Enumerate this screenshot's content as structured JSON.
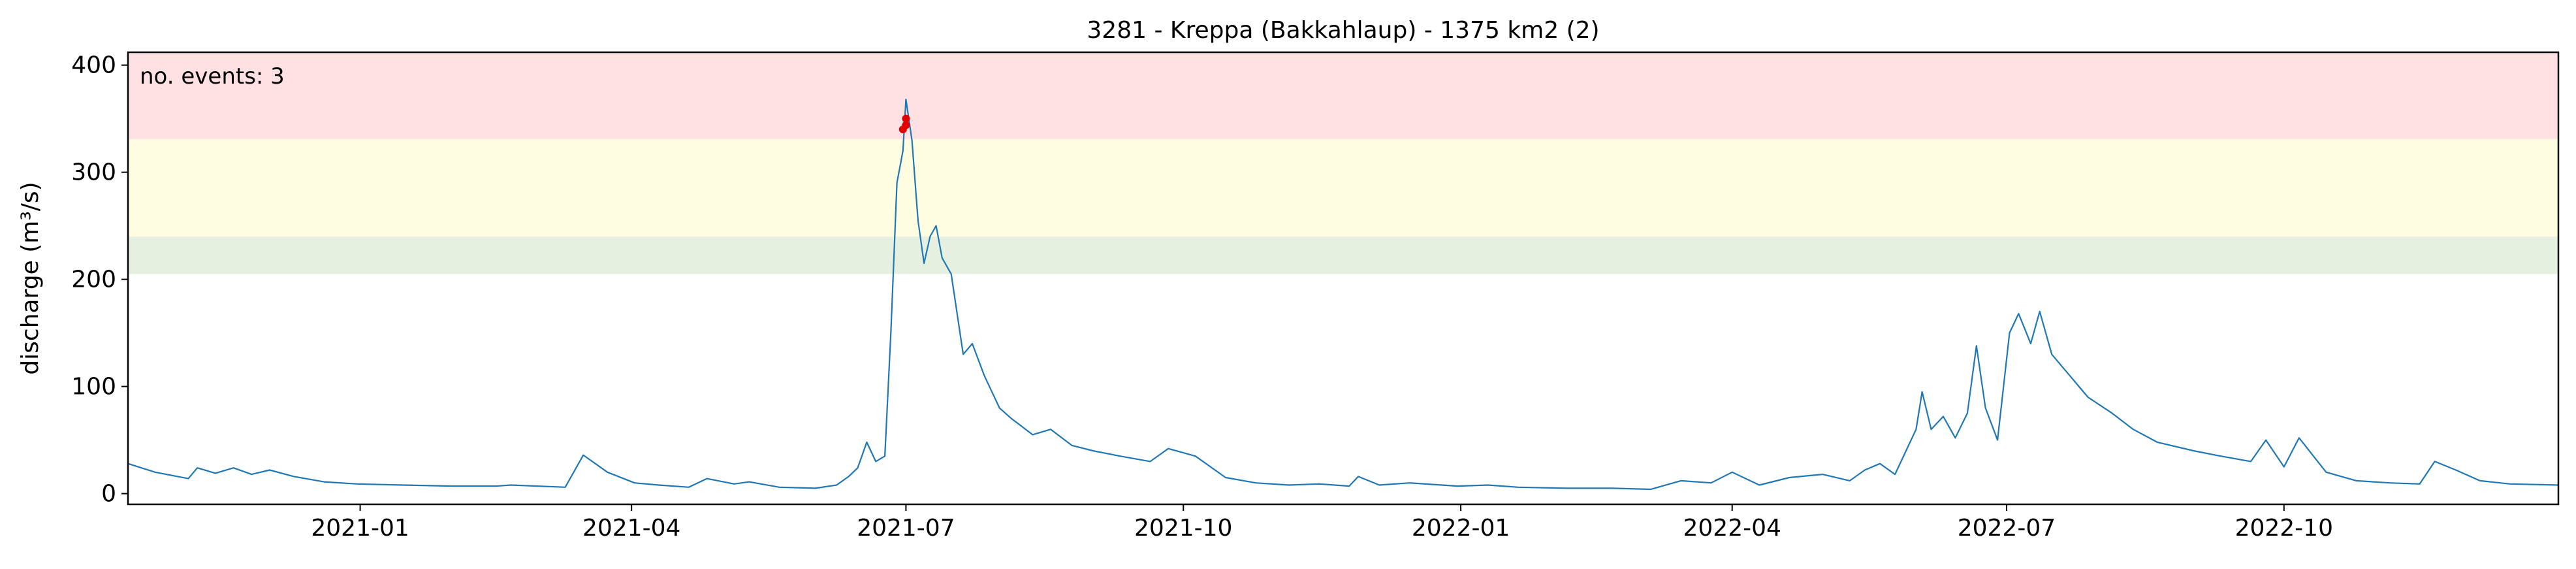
{
  "chart_data": {
    "type": "line",
    "title": "3281 - Kreppa (Bakkahlaup) - 1375 km2 (2)",
    "xlabel": "",
    "ylabel": "discharge (m³/s)",
    "xlim": [
      "2020-10-16",
      "2022-12-31"
    ],
    "ylim": [
      -10,
      412
    ],
    "x_ticks": [
      "2021-01-01",
      "2021-04-01",
      "2021-07-01",
      "2021-10-01",
      "2022-01-01",
      "2022-04-01",
      "2022-07-01",
      "2022-10-01"
    ],
    "x_tick_labels": [
      "2021-01",
      "2021-04",
      "2021-07",
      "2021-10",
      "2022-01",
      "2022-04",
      "2022-07",
      "2022-10"
    ],
    "y_ticks": [
      0,
      100,
      200,
      300,
      400
    ],
    "y_tick_labels": [
      "0",
      "100",
      "200",
      "300",
      "400"
    ],
    "grid": false,
    "threshold_bands": [
      {
        "from": 205,
        "to": 240,
        "color": "#e6f0e1"
      },
      {
        "from": 240,
        "to": 331,
        "color": "#fefde2"
      },
      {
        "from": 331,
        "to": 412,
        "color": "#ffe1e3"
      }
    ],
    "annotation": {
      "text": "no. events: 3",
      "color": "#e00000"
    },
    "line_color": "#1f77b4",
    "event_marker_color": "#e00000",
    "events": [
      {
        "x": "2021-06-30",
        "y": 340
      },
      {
        "x": "2021-07-01",
        "y": 350
      },
      {
        "x": "2021-07-01",
        "y": 344
      }
    ],
    "series": [
      {
        "points": [
          [
            "2020-10-16",
            28
          ],
          [
            "2020-10-25",
            20
          ],
          [
            "2020-11-05",
            14
          ],
          [
            "2020-11-08",
            24
          ],
          [
            "2020-11-14",
            19
          ],
          [
            "2020-11-20",
            24
          ],
          [
            "2020-11-26",
            18
          ],
          [
            "2020-12-02",
            22
          ],
          [
            "2020-12-10",
            16
          ],
          [
            "2020-12-20",
            11
          ],
          [
            "2020-12-31",
            9
          ],
          [
            "2021-01-15",
            8
          ],
          [
            "2021-02-01",
            7
          ],
          [
            "2021-02-15",
            7
          ],
          [
            "2021-02-20",
            8
          ],
          [
            "2021-03-10",
            6
          ],
          [
            "2021-03-16",
            36
          ],
          [
            "2021-03-24",
            20
          ],
          [
            "2021-04-02",
            10
          ],
          [
            "2021-04-10",
            8
          ],
          [
            "2021-04-20",
            6
          ],
          [
            "2021-04-26",
            14
          ],
          [
            "2021-05-05",
            9
          ],
          [
            "2021-05-10",
            11
          ],
          [
            "2021-05-20",
            6
          ],
          [
            "2021-06-01",
            5
          ],
          [
            "2021-06-08",
            8
          ],
          [
            "2021-06-12",
            16
          ],
          [
            "2021-06-15",
            24
          ],
          [
            "2021-06-18",
            48
          ],
          [
            "2021-06-21",
            30
          ],
          [
            "2021-06-24",
            35
          ],
          [
            "2021-06-26",
            150
          ],
          [
            "2021-06-28",
            290
          ],
          [
            "2021-06-30",
            320
          ],
          [
            "2021-07-01",
            368
          ],
          [
            "2021-07-03",
            330
          ],
          [
            "2021-07-05",
            255
          ],
          [
            "2021-07-07",
            215
          ],
          [
            "2021-07-09",
            240
          ],
          [
            "2021-07-11",
            250
          ],
          [
            "2021-07-13",
            220
          ],
          [
            "2021-07-16",
            205
          ],
          [
            "2021-07-20",
            130
          ],
          [
            "2021-07-23",
            140
          ],
          [
            "2021-07-27",
            110
          ],
          [
            "2021-08-01",
            80
          ],
          [
            "2021-08-05",
            70
          ],
          [
            "2021-08-12",
            55
          ],
          [
            "2021-08-18",
            60
          ],
          [
            "2021-08-25",
            45
          ],
          [
            "2021-09-01",
            40
          ],
          [
            "2021-09-10",
            35
          ],
          [
            "2021-09-20",
            30
          ],
          [
            "2021-09-26",
            42
          ],
          [
            "2021-10-05",
            35
          ],
          [
            "2021-10-15",
            15
          ],
          [
            "2021-10-25",
            10
          ],
          [
            "2021-11-05",
            8
          ],
          [
            "2021-11-15",
            9
          ],
          [
            "2021-11-25",
            7
          ],
          [
            "2021-11-28",
            16
          ],
          [
            "2021-12-05",
            8
          ],
          [
            "2021-12-15",
            10
          ],
          [
            "2021-12-31",
            7
          ],
          [
            "2022-01-10",
            8
          ],
          [
            "2022-01-20",
            6
          ],
          [
            "2022-02-05",
            5
          ],
          [
            "2022-02-20",
            5
          ],
          [
            "2022-03-05",
            4
          ],
          [
            "2022-03-15",
            12
          ],
          [
            "2022-03-25",
            10
          ],
          [
            "2022-04-01",
            20
          ],
          [
            "2022-04-10",
            8
          ],
          [
            "2022-04-20",
            15
          ],
          [
            "2022-05-01",
            18
          ],
          [
            "2022-05-10",
            12
          ],
          [
            "2022-05-15",
            22
          ],
          [
            "2022-05-20",
            28
          ],
          [
            "2022-05-25",
            18
          ],
          [
            "2022-06-01",
            60
          ],
          [
            "2022-06-03",
            95
          ],
          [
            "2022-06-06",
            60
          ],
          [
            "2022-06-10",
            72
          ],
          [
            "2022-06-14",
            52
          ],
          [
            "2022-06-18",
            75
          ],
          [
            "2022-06-21",
            138
          ],
          [
            "2022-06-24",
            80
          ],
          [
            "2022-06-28",
            50
          ],
          [
            "2022-07-02",
            150
          ],
          [
            "2022-07-05",
            168
          ],
          [
            "2022-07-09",
            140
          ],
          [
            "2022-07-12",
            170
          ],
          [
            "2022-07-16",
            130
          ],
          [
            "2022-07-22",
            110
          ],
          [
            "2022-07-28",
            90
          ],
          [
            "2022-08-05",
            75
          ],
          [
            "2022-08-12",
            60
          ],
          [
            "2022-08-20",
            48
          ],
          [
            "2022-09-01",
            40
          ],
          [
            "2022-09-10",
            35
          ],
          [
            "2022-09-20",
            30
          ],
          [
            "2022-09-25",
            50
          ],
          [
            "2022-10-01",
            25
          ],
          [
            "2022-10-06",
            52
          ],
          [
            "2022-10-15",
            20
          ],
          [
            "2022-10-25",
            12
          ],
          [
            "2022-11-05",
            10
          ],
          [
            "2022-11-15",
            9
          ],
          [
            "2022-11-20",
            30
          ],
          [
            "2022-11-27",
            22
          ],
          [
            "2022-12-05",
            12
          ],
          [
            "2022-12-15",
            9
          ],
          [
            "2022-12-31",
            8
          ]
        ]
      }
    ]
  }
}
